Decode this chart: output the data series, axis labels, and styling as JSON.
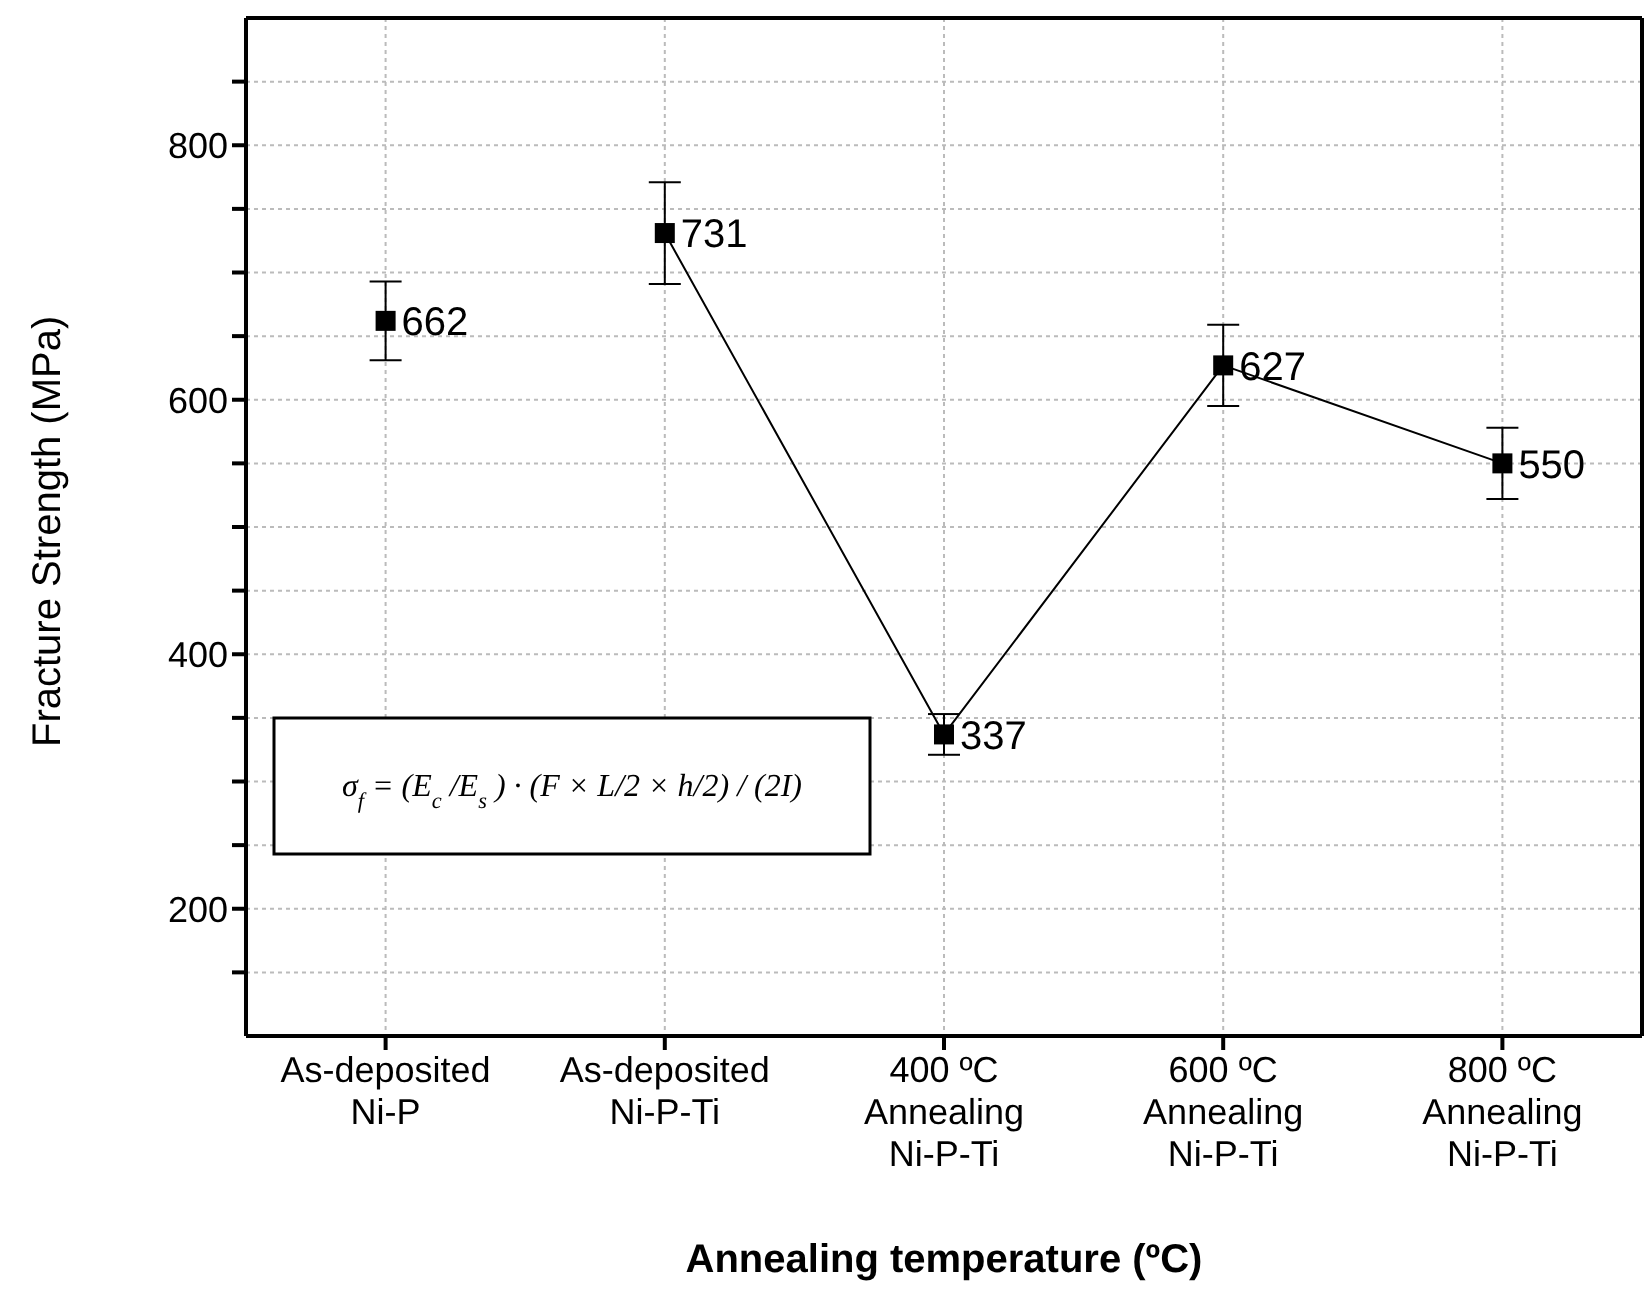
{
  "chart_data": {
    "type": "line",
    "xlabel": "Annealing temperature (ºC)",
    "ylabel": "Fracture Strength (MPa)",
    "categories": [
      "As-deposited\nNi-P",
      "As-deposited\nNi-P-Ti",
      "400 ºC\nAnnealing\nNi-P-Ti",
      "600 ºC\nAnnealing\nNi-P-Ti",
      "800 ºC\nAnnealing\nNi-P-Ti"
    ],
    "series": [
      {
        "color": "#000000",
        "values": [
          662,
          null,
          null,
          null,
          null
        ],
        "errors": [
          31,
          null,
          null,
          null,
          null
        ]
      },
      {
        "color": "#000000",
        "values": [
          null,
          731,
          337,
          627,
          550
        ],
        "errors": [
          null,
          40,
          16,
          32,
          28
        ]
      }
    ],
    "ylim": [
      100,
      900
    ],
    "yticks": [
      {
        "value": 150,
        "label": null
      },
      200,
      {
        "value": 250,
        "label": null
      },
      {
        "value": 300,
        "label": null
      },
      {
        "value": 350,
        "label": null
      },
      400,
      {
        "value": 450,
        "label": null
      },
      {
        "value": 500,
        "label": null
      },
      {
        "value": 550,
        "label": null
      },
      600,
      {
        "value": 650,
        "label": null
      },
      {
        "value": 700,
        "label": null
      },
      {
        "value": 750,
        "label": null
      },
      800,
      {
        "value": 850,
        "label": null
      }
    ],
    "grid": true,
    "marker": "square",
    "line_style": "solid",
    "data_labels": true,
    "annotations": [
      "σ$_{f}$ = (E$_{c}$/E$_{s}$) · (F × L/2 × h/2) / (2I)"
    ]
  }
}
